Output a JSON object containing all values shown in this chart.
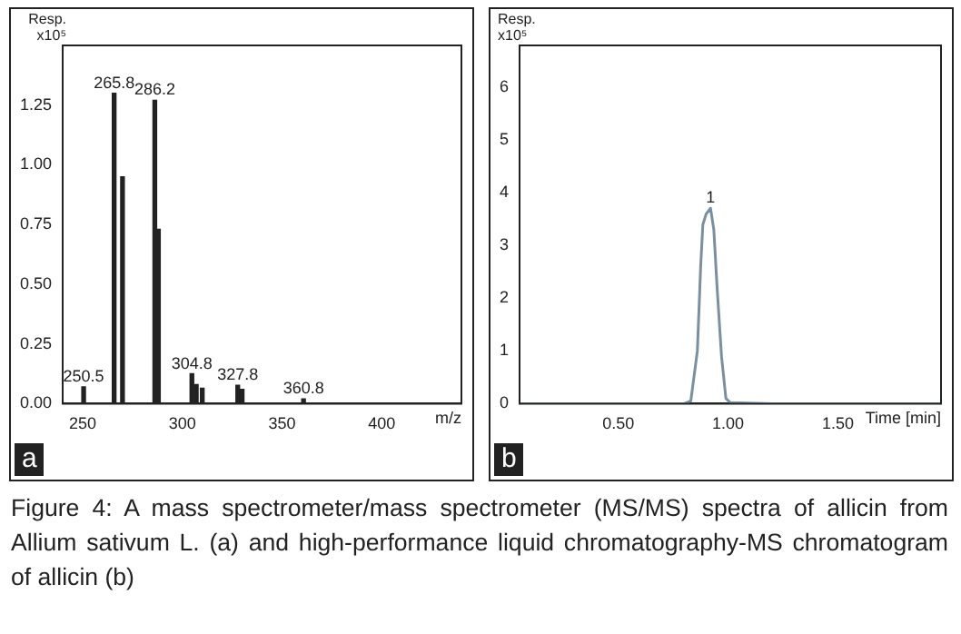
{
  "chart_data": [
    {
      "type": "bar",
      "xlabel": "m/z",
      "ylabel": "Resp. x10⁵",
      "color": "#222222",
      "x": [
        250.5,
        265.8,
        270,
        286.2,
        288,
        304.8,
        307,
        310,
        327.8,
        330,
        360.8
      ],
      "values": [
        0.07,
        1.3,
        0.95,
        1.27,
        0.73,
        0.125,
        0.08,
        0.065,
        0.077,
        0.06,
        0.02
      ],
      "xlim": [
        240,
        440
      ],
      "xticks": [
        250,
        300,
        350,
        400
      ],
      "ylim": [
        0,
        1.5
      ],
      "yticks": [
        {
          "value": 0,
          "label": "0.00"
        },
        {
          "value": 0.25,
          "label": "0.25"
        },
        {
          "value": 0.5,
          "label": "0.50"
        },
        {
          "value": 0.75,
          "label": "0.75"
        },
        {
          "value": 1,
          "label": "1.00"
        },
        {
          "value": 1.25,
          "label": "1.25"
        }
      ],
      "annotations": [
        "a",
        {
          "text": "250.5",
          "x": 250.5,
          "y": 0.07
        },
        {
          "text": "265.8",
          "x": 265.8,
          "y": 1.3
        },
        {
          "text": "286.2",
          "x": 286.2,
          "y": 1.27
        },
        {
          "text": "304.8",
          "x": 304.8,
          "y": 0.125
        },
        {
          "text": "327.8",
          "x": 327.8,
          "y": 0.077
        },
        {
          "text": "360.8",
          "x": 360.8,
          "y": 0.02
        }
      ]
    },
    {
      "type": "line",
      "xlabel": "Time [min]",
      "ylabel": "Resp. x10⁵",
      "color": "#7a8fa0",
      "marker": "none",
      "x": [
        0.05,
        0.3,
        0.6,
        0.8,
        0.83,
        0.86,
        0.875,
        0.885,
        0.9,
        0.92,
        0.935,
        0.95,
        0.97,
        0.99,
        1.01,
        1.2,
        1.5,
        1.97
      ],
      "values": [
        0,
        0,
        0,
        0,
        0.05,
        1.0,
        2.6,
        3.4,
        3.6,
        3.71,
        3.3,
        2.2,
        0.9,
        0.1,
        0.02,
        0,
        0,
        0
      ],
      "xlim": [
        0.05,
        1.97
      ],
      "xticks": [
        {
          "value": 0.5,
          "label": "0.50"
        },
        {
          "value": 1,
          "label": "1.00"
        },
        {
          "value": 1.5,
          "label": "1.50"
        }
      ],
      "ylim": [
        0,
        6.8
      ],
      "yticks": [
        0,
        1,
        2,
        3,
        4,
        5,
        6
      ],
      "annotations": [
        "b",
        {
          "text": "1",
          "x": 0.92,
          "y": 3.71
        },
        "Figure 4: A mass spectrometer/mass spectrometer (MS/MS) spectra of allicin from Allium sativum L. (a) and high-performance liquid chromatography-MS chromatogram of allicin (b)"
      ]
    }
  ]
}
